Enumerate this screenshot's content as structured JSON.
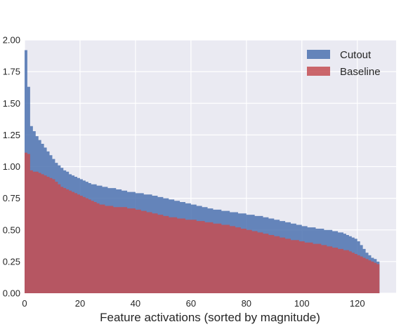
{
  "chart_data": {
    "type": "area",
    "title": "",
    "xlabel": "Feature activations (sorted by magnitude)",
    "ylabel": "",
    "xlim": [
      0,
      134
    ],
    "ylim": [
      0,
      2.0
    ],
    "xticks": [
      0,
      20,
      40,
      60,
      80,
      100,
      120
    ],
    "xtick_labels": [
      "0",
      "20",
      "40",
      "60",
      "80",
      "100",
      "120"
    ],
    "yticks": [
      0,
      0.25,
      0.5,
      0.75,
      1.0,
      1.25,
      1.5,
      1.75,
      2.0
    ],
    "ytick_labels": [
      "0.00",
      "0.25",
      "0.50",
      "0.75",
      "1.00",
      "1.25",
      "1.50",
      "1.75",
      "2.00"
    ],
    "grid": true,
    "legend_position": "top-right",
    "series": [
      {
        "name": "Cutout",
        "color": "#4c72b0",
        "values": [
          1.92,
          1.63,
          1.32,
          1.28,
          1.24,
          1.21,
          1.18,
          1.15,
          1.12,
          1.09,
          1.06,
          1.03,
          1.01,
          0.99,
          0.97,
          0.96,
          0.94,
          0.93,
          0.92,
          0.91,
          0.9,
          0.89,
          0.88,
          0.87,
          0.86,
          0.86,
          0.85,
          0.85,
          0.84,
          0.84,
          0.83,
          0.83,
          0.83,
          0.82,
          0.82,
          0.81,
          0.81,
          0.8,
          0.8,
          0.8,
          0.79,
          0.79,
          0.79,
          0.78,
          0.78,
          0.78,
          0.77,
          0.77,
          0.76,
          0.76,
          0.75,
          0.75,
          0.74,
          0.74,
          0.73,
          0.73,
          0.72,
          0.72,
          0.71,
          0.71,
          0.7,
          0.7,
          0.69,
          0.69,
          0.68,
          0.68,
          0.67,
          0.67,
          0.66,
          0.66,
          0.66,
          0.65,
          0.65,
          0.65,
          0.64,
          0.64,
          0.64,
          0.63,
          0.63,
          0.63,
          0.62,
          0.62,
          0.62,
          0.61,
          0.61,
          0.61,
          0.6,
          0.6,
          0.59,
          0.59,
          0.58,
          0.58,
          0.57,
          0.57,
          0.56,
          0.56,
          0.55,
          0.55,
          0.54,
          0.54,
          0.53,
          0.53,
          0.52,
          0.52,
          0.52,
          0.51,
          0.51,
          0.51,
          0.5,
          0.5,
          0.5,
          0.49,
          0.49,
          0.48,
          0.48,
          0.47,
          0.46,
          0.45,
          0.44,
          0.43,
          0.41,
          0.38,
          0.35,
          0.32,
          0.3,
          0.28,
          0.27,
          0.25
        ]
      },
      {
        "name": "Baseline",
        "color": "#c44e52",
        "values": [
          1.11,
          1.1,
          0.97,
          0.96,
          0.96,
          0.95,
          0.94,
          0.93,
          0.92,
          0.91,
          0.9,
          0.88,
          0.86,
          0.84,
          0.83,
          0.82,
          0.81,
          0.8,
          0.79,
          0.78,
          0.77,
          0.76,
          0.75,
          0.74,
          0.73,
          0.72,
          0.71,
          0.7,
          0.7,
          0.69,
          0.69,
          0.69,
          0.68,
          0.68,
          0.68,
          0.68,
          0.68,
          0.67,
          0.67,
          0.67,
          0.66,
          0.66,
          0.65,
          0.65,
          0.64,
          0.64,
          0.63,
          0.63,
          0.62,
          0.62,
          0.61,
          0.61,
          0.6,
          0.6,
          0.6,
          0.59,
          0.59,
          0.59,
          0.58,
          0.58,
          0.58,
          0.58,
          0.57,
          0.57,
          0.57,
          0.56,
          0.56,
          0.56,
          0.55,
          0.55,
          0.55,
          0.54,
          0.54,
          0.54,
          0.53,
          0.53,
          0.52,
          0.52,
          0.51,
          0.51,
          0.5,
          0.5,
          0.49,
          0.49,
          0.48,
          0.48,
          0.47,
          0.47,
          0.46,
          0.46,
          0.45,
          0.45,
          0.44,
          0.44,
          0.43,
          0.43,
          0.42,
          0.42,
          0.42,
          0.41,
          0.41,
          0.4,
          0.4,
          0.4,
          0.39,
          0.39,
          0.39,
          0.38,
          0.38,
          0.37,
          0.37,
          0.36,
          0.36,
          0.35,
          0.35,
          0.34,
          0.34,
          0.33,
          0.32,
          0.31,
          0.3,
          0.29,
          0.28,
          0.27,
          0.26,
          0.25,
          0.24,
          0.23
        ]
      }
    ]
  }
}
